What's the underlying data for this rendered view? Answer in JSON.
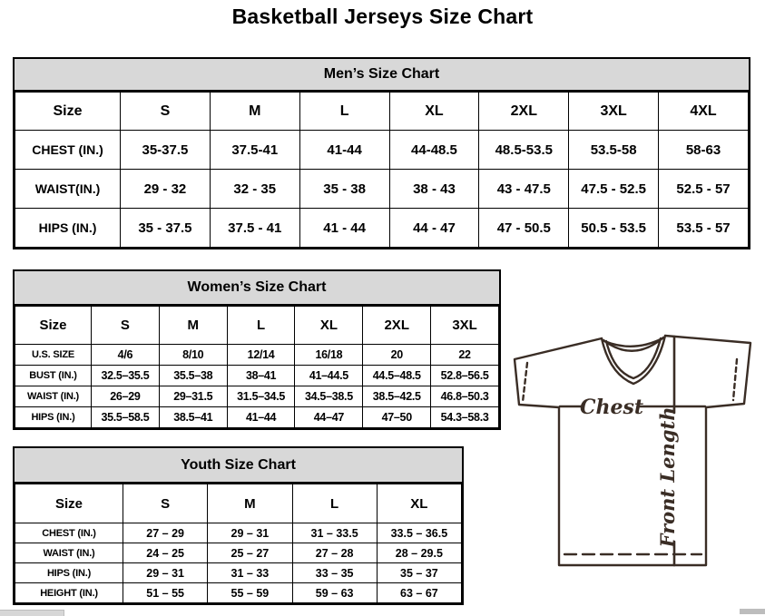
{
  "page": {
    "title": "Basketball Jerseys Size Chart"
  },
  "colors": {
    "table_header_bg": "#d8d8d8",
    "table_border": "#000000",
    "diagram_ink": "#3a2d25",
    "scrollbar_gray": "#bdbdbd"
  },
  "tables": {
    "men": {
      "title": "Men’s Size Chart",
      "columns": [
        "Size",
        "S",
        "M",
        "L",
        "XL",
        "2XL",
        "3XL",
        "4XL"
      ],
      "rows": [
        {
          "label": "CHEST (IN.)",
          "values": [
            "35-37.5",
            "37.5-41",
            "41-44",
            "44-48.5",
            "48.5-53.5",
            "53.5-58",
            "58-63"
          ]
        },
        {
          "label": "WAIST(IN.)",
          "values": [
            "29 - 32",
            "32 - 35",
            "35 - 38",
            "38 - 43",
            "43 - 47.5",
            "47.5 - 52.5",
            "52.5 - 57"
          ]
        },
        {
          "label": "HIPS (IN.)",
          "values": [
            "35 - 37.5",
            "37.5 - 41",
            "41 - 44",
            "44 - 47",
            "47 - 50.5",
            "50.5 - 53.5",
            "53.5 - 57"
          ]
        }
      ]
    },
    "women": {
      "title": "Women’s Size Chart",
      "columns": [
        "Size",
        "S",
        "M",
        "L",
        "XL",
        "2XL",
        "3XL"
      ],
      "rows": [
        {
          "label": "U.S. SIZE",
          "values": [
            "4/6",
            "8/10",
            "12/14",
            "16/18",
            "20",
            "22"
          ]
        },
        {
          "label": "BUST (IN.)",
          "values": [
            "32.5–35.5",
            "35.5–38",
            "38–41",
            "41–44.5",
            "44.5–48.5",
            "52.8–56.5"
          ]
        },
        {
          "label": "WAIST (IN.)",
          "values": [
            "26–29",
            "29–31.5",
            "31.5–34.5",
            "34.5–38.5",
            "38.5–42.5",
            "46.8–50.3"
          ]
        },
        {
          "label": "HIPS (IN.)",
          "values": [
            "35.5–58.5",
            "38.5–41",
            "41–44",
            "44–47",
            "47–50",
            "54.3–58.3"
          ]
        }
      ]
    },
    "youth": {
      "title": "Youth Size Chart",
      "columns": [
        "Size",
        "S",
        "M",
        "L",
        "XL"
      ],
      "rows": [
        {
          "label": "CHEST (IN.)",
          "values": [
            "27 – 29",
            "29 – 31",
            "31 – 33.5",
            "33.5 – 36.5"
          ]
        },
        {
          "label": "WAIST (IN.)",
          "values": [
            "24 – 25",
            "25 – 27",
            "27 – 28",
            "28 – 29.5"
          ]
        },
        {
          "label": "HIPS (IN.)",
          "values": [
            "29 – 31",
            "31 – 33",
            "33 – 35",
            "35 – 37"
          ]
        },
        {
          "label": "HEIGHT (IN.)",
          "values": [
            "51 – 55",
            "55 – 59",
            "59 – 63",
            "63 – 67"
          ]
        }
      ]
    }
  },
  "diagram": {
    "chest_label": "Chest",
    "front_length_label": "Front Length"
  }
}
